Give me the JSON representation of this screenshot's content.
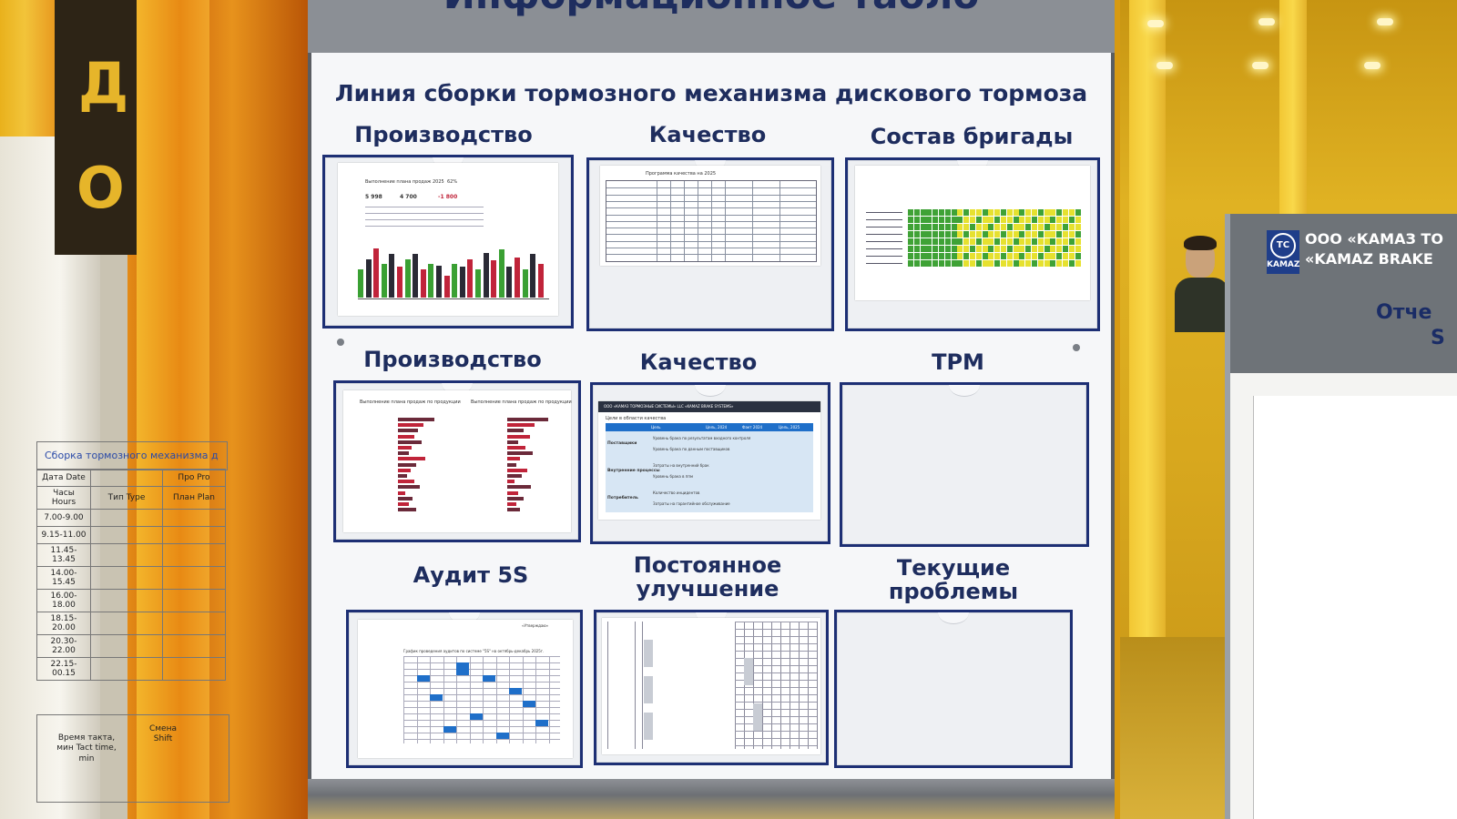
{
  "board": {
    "title": "Информационное табло",
    "line_title": "Линия сборки тормозного механизма дискового тормоза",
    "sections": [
      {
        "title": "Производство"
      },
      {
        "title": "Качество"
      },
      {
        "title": "Состав бригады"
      },
      {
        "title": "Производство"
      },
      {
        "title": "Качество"
      },
      {
        "title": "TPM"
      },
      {
        "title": "Аудит 5S"
      },
      {
        "title": "Постоянное улучшение"
      },
      {
        "title": "Текущие проблемы"
      }
    ]
  },
  "sheets": {
    "production_chart": {
      "title": "Выполнение плана продаж 2025",
      "percent": "62%",
      "kpi1": "5 998",
      "kpi2": "4 700",
      "kpi3": "-1 800",
      "bar_heights": [
        0.45,
        0.62,
        0.8,
        0.55,
        0.7,
        0.5,
        0.62,
        0.7,
        0.45,
        0.55,
        0.52,
        0.35,
        0.55,
        0.5,
        0.62,
        0.45,
        0.72,
        0.6,
        0.78,
        0.5,
        0.65,
        0.45,
        0.7,
        0.55
      ]
    },
    "quality_table": {
      "title": "Программа качества на 2025"
    },
    "quality_goals": {
      "header": "ООО «КАМАЗ ТОРМОЗНЫЕ СИСТЕМЫ» LLC «KAMAZ BRAKE SYSTEMS»",
      "subheader": "Цели в области качества",
      "columns": [
        "Цель",
        "Цель, 2024",
        "Факт 2024",
        "Цель, 2025"
      ],
      "rows": [
        {
          "group": "Поставщики",
          "items": [
            "Уровень брака по результатам входного контроля",
            "Уровень брака по данным поставщиков"
          ]
        },
        {
          "group": "Внутренние процессы",
          "items": [
            "Затраты на внутренний брак",
            "Уровень брака в ппм"
          ]
        },
        {
          "group": "Потребитель",
          "items": [
            "Количество инцидентов",
            "Затраты на гарантийное обслуживание"
          ]
        }
      ]
    },
    "production_hbars": {
      "title_left": "Выполнение плана продаж по продукции",
      "title_right": "Выполнение плана продаж по продукции"
    },
    "audit": {
      "header": "«Утверждаю»",
      "title": "График проведения аудитов по системе \"5S\" на октябрь-декабрь 2025г."
    }
  },
  "side_panel": {
    "company_ru": "ООО «КАМАЗ ТО",
    "company_en": "«KAMAZ BRAKE",
    "heading_line1": "Отче",
    "heading_line2": "S",
    "logo_text": "KAMAZ",
    "logo_mark": "TC",
    "sheet_title": "Сборка тормозного механизма д",
    "col_date": "Дата Date",
    "col_hours": "Часы Hours",
    "col_type": "Тип Type",
    "col_plan": "План Plan",
    "col_pr": "Про Pro",
    "hours": [
      "7.00-9.00",
      "9.15-11.00",
      "11.45-13.45",
      "14.00-15.45",
      "16.00-18.00",
      "18.15-20.00",
      "20.30-22.00",
      "22.15-00.15"
    ],
    "tact_label": "Время такта, мин Tact time, min",
    "shift_label": "Смена Shift"
  },
  "scene": {
    "left_sign_top": "Д",
    "left_sign_bottom": "О"
  },
  "colors": {
    "board_text": "#1e2d5e",
    "pocket_border": "#1d2f74",
    "bar_green": "#3aa033",
    "bar_dark": "#2a2a35",
    "bar_red": "#c0243a",
    "grid_green": "#3fa236",
    "grid_yellow": "#e6e12f",
    "audit_blue": "#1f6fc9"
  }
}
